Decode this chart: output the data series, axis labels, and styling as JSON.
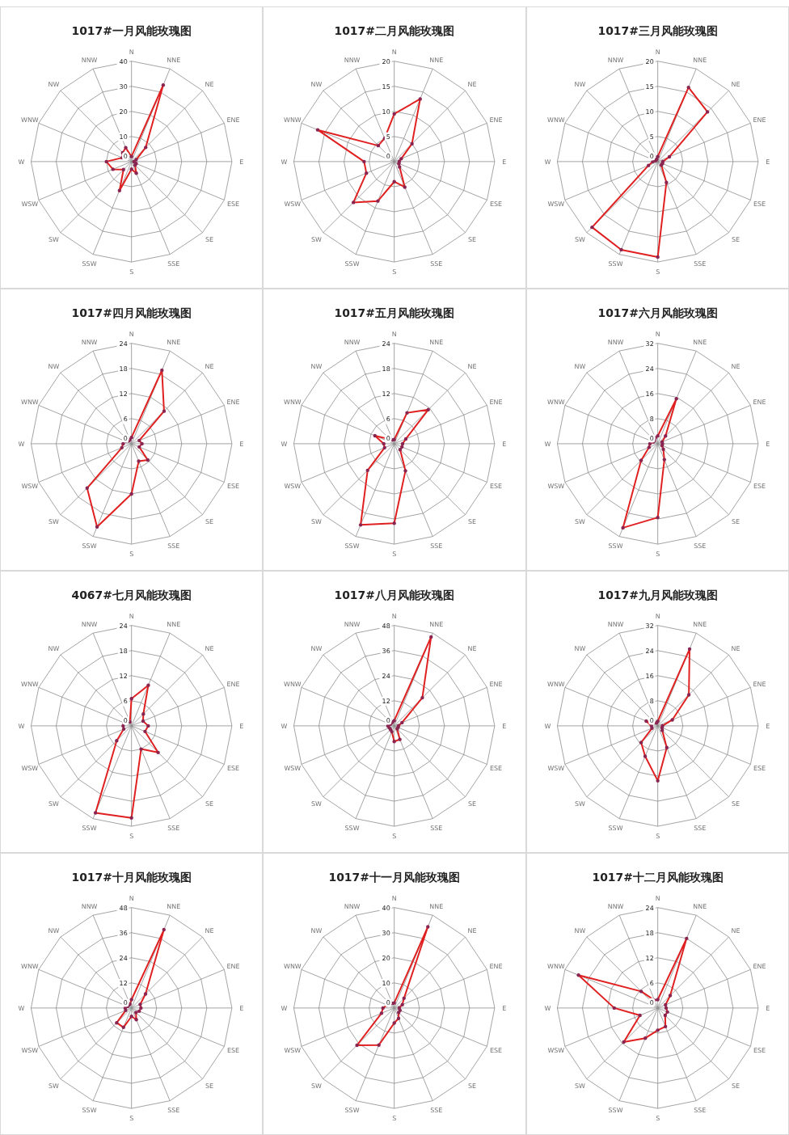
{
  "chart_data": [
    {
      "type": "radar",
      "title": "1017#一月风能玫瑰图",
      "categories": [
        "N",
        "NNE",
        "NE",
        "ENE",
        "E",
        "ESE",
        "SE",
        "SSE",
        "S",
        "SSW",
        "SW",
        "WSW",
        "W",
        "WNW",
        "NW",
        "NNW"
      ],
      "ylim": [
        0,
        40
      ],
      "yticks": [
        0,
        10,
        20,
        30,
        40
      ],
      "grid": true,
      "marker": "circle",
      "series": [
        {
          "color": "#e02020",
          "values": [
            2,
            33,
            8,
            2,
            1,
            2,
            2,
            5,
            3,
            12.5,
            4.5,
            8,
            10,
            4,
            5,
            6
          ]
        }
      ]
    },
    {
      "type": "radar",
      "title": "1017#二月风能玫瑰图",
      "categories": [
        "N",
        "NNE",
        "NE",
        "ENE",
        "E",
        "ESE",
        "SE",
        "SSE",
        "S",
        "SSW",
        "SW",
        "WSW",
        "W",
        "WNW",
        "NW",
        "NNW"
      ],
      "ylim": [
        0,
        20
      ],
      "yticks": [
        0,
        5,
        10,
        15,
        20
      ],
      "grid": true,
      "marker": "circle",
      "series": [
        {
          "color": "#e02020",
          "values": [
            9.5,
            13.5,
            5,
            1.5,
            1,
            1,
            1.5,
            5.5,
            4,
            8.5,
            11.5,
            6,
            6,
            16.5,
            4.5,
            5
          ]
        }
      ]
    },
    {
      "type": "radar",
      "title": "1017#三月风能玫瑰图",
      "categories": [
        "N",
        "NNE",
        "NE",
        "ENE",
        "E",
        "ESE",
        "SE",
        "SSE",
        "S",
        "SSW",
        "SW",
        "WSW",
        "W",
        "WNW",
        "NW",
        "NNW"
      ],
      "ylim": [
        0,
        20
      ],
      "yticks": [
        0,
        5,
        10,
        15,
        20
      ],
      "grid": true,
      "marker": "circle",
      "series": [
        {
          "color": "#e02020",
          "values": [
            1,
            16,
            14,
            2.5,
            1,
            1,
            1,
            4.5,
            19,
            19,
            18.5,
            2,
            1,
            0.5,
            0.5,
            0.5
          ]
        }
      ]
    },
    {
      "type": "radar",
      "title": "1017#四月风能玫瑰图",
      "categories": [
        "N",
        "NNE",
        "NE",
        "ENE",
        "E",
        "ESE",
        "SE",
        "SSE",
        "S",
        "SSW",
        "SW",
        "WSW",
        "W",
        "WNW",
        "NW",
        "NNW"
      ],
      "ylim": [
        0,
        24
      ],
      "yticks": [
        0,
        6,
        12,
        18,
        24
      ],
      "grid": true,
      "marker": "circle",
      "series": [
        {
          "color": "#e02020",
          "values": [
            1.5,
            19,
            11,
            2,
            2.5,
            2,
            5.5,
            4.5,
            12,
            21.5,
            15,
            2.5,
            2,
            1.5,
            1,
            1
          ]
        }
      ]
    },
    {
      "type": "radar",
      "title": "1017#五月风能玫瑰图",
      "categories": [
        "N",
        "NNE",
        "NE",
        "ENE",
        "E",
        "ESE",
        "SE",
        "SSE",
        "S",
        "SSW",
        "SW",
        "WSW",
        "W",
        "WNW",
        "NW",
        "NNW"
      ],
      "ylim": [
        0,
        24
      ],
      "yticks": [
        0,
        6,
        12,
        18,
        24
      ],
      "grid": true,
      "marker": "circle",
      "series": [
        {
          "color": "#e02020",
          "values": [
            1,
            8,
            11.5,
            3,
            2,
            2,
            2,
            7,
            19,
            21,
            9,
            2.5,
            2.5,
            5,
            1.5,
            1
          ]
        }
      ]
    },
    {
      "type": "radar",
      "title": "1017#六月风能玫瑰图",
      "categories": [
        "N",
        "NNE",
        "NE",
        "ENE",
        "E",
        "ESE",
        "SE",
        "SSE",
        "S",
        "SSW",
        "SW",
        "WSW",
        "W",
        "WNW",
        "NW",
        "NNW"
      ],
      "ylim": [
        0,
        32
      ],
      "yticks": [
        0,
        8,
        16,
        24,
        32
      ],
      "grid": true,
      "marker": "circle",
      "series": [
        {
          "color": "#e02020",
          "values": [
            2.5,
            15.5,
            3.5,
            1.5,
            1.5,
            1.5,
            2.5,
            5.5,
            23.5,
            29,
            7.5,
            3,
            2.5,
            1.5,
            1.5,
            2
          ]
        }
      ]
    },
    {
      "type": "radar",
      "title": "4067#七月风能玫瑰图",
      "categories": [
        "N",
        "NNE",
        "NE",
        "ENE",
        "E",
        "ESE",
        "SE",
        "SSE",
        "S",
        "SSW",
        "SW",
        "WSW",
        "W",
        "WNW",
        "NW",
        "NNW"
      ],
      "ylim": [
        0,
        24
      ],
      "yticks": [
        0,
        6,
        12,
        18,
        24
      ],
      "grid": true,
      "marker": "circle",
      "series": [
        {
          "color": "#e02020",
          "values": [
            6.5,
            10.5,
            4,
            3,
            4,
            3.5,
            9,
            6,
            22,
            22.5,
            5,
            2,
            2,
            2,
            1.5,
            1
          ]
        }
      ]
    },
    {
      "type": "radar",
      "title": "1017#八月风能玫瑰图",
      "categories": [
        "N",
        "NNE",
        "NE",
        "ENE",
        "E",
        "ESE",
        "SE",
        "SSE",
        "S",
        "SSW",
        "SW",
        "WSW",
        "W",
        "WNW",
        "NW",
        "NNW"
      ],
      "ylim": [
        0,
        48
      ],
      "yticks": [
        0,
        12,
        24,
        36,
        48
      ],
      "grid": true,
      "marker": "circle",
      "series": [
        {
          "color": "#e02020",
          "values": [
            2.5,
            46,
            19,
            4,
            2,
            2,
            2,
            7,
            7.5,
            3,
            2.5,
            2.5,
            3,
            2,
            2,
            2
          ]
        }
      ]
    },
    {
      "type": "radar",
      "title": "1017#九月风能玫瑰图",
      "categories": [
        "N",
        "NNE",
        "NE",
        "ENE",
        "E",
        "ESE",
        "SE",
        "SSE",
        "S",
        "SSW",
        "SW",
        "WSW",
        "W",
        "WNW",
        "NW",
        "NNW"
      ],
      "ylim": [
        0,
        32
      ],
      "yticks": [
        0,
        8,
        16,
        24,
        32
      ],
      "grid": true,
      "marker": "circle",
      "series": [
        {
          "color": "#e02020",
          "values": [
            1.5,
            26.5,
            14,
            5,
            1.5,
            1.5,
            2,
            7.5,
            17.5,
            10.5,
            7.5,
            2,
            2,
            4,
            1.5,
            1
          ]
        }
      ]
    },
    {
      "type": "radar",
      "title": "1017#十月风能玫瑰图",
      "categories": [
        "N",
        "NNE",
        "NE",
        "ENE",
        "E",
        "ESE",
        "SE",
        "SSE",
        "S",
        "SSW",
        "SW",
        "WSW",
        "W",
        "WNW",
        "NW",
        "NNW"
      ],
      "ylim": [
        0,
        48
      ],
      "yticks": [
        0,
        12,
        24,
        36,
        48
      ],
      "grid": true,
      "marker": "circle",
      "series": [
        {
          "color": "#e02020",
          "values": [
            4,
            40.5,
            9.5,
            4.5,
            4.5,
            4,
            3,
            6,
            4,
            10,
            10,
            3,
            3,
            2,
            2,
            2
          ]
        }
      ]
    },
    {
      "type": "radar",
      "title": "1017#十一月风能玫瑰图",
      "categories": [
        "N",
        "NNE",
        "NE",
        "ENE",
        "E",
        "ESE",
        "SE",
        "SSE",
        "S",
        "SSW",
        "SW",
        "WSW",
        "W",
        "WNW",
        "NW",
        "NNW"
      ],
      "ylim": [
        0,
        40
      ],
      "yticks": [
        0,
        10,
        20,
        30,
        40
      ],
      "grid": true,
      "marker": "circle",
      "series": [
        {
          "color": "#e02020",
          "values": [
            2,
            35,
            5.5,
            3.5,
            2,
            2.5,
            2.5,
            4.5,
            6,
            16,
            21,
            5.5,
            4.5,
            3,
            2.5,
            2
          ]
        }
      ]
    },
    {
      "type": "radar",
      "title": "1017#十二月风能玫瑰图",
      "categories": [
        "N",
        "NNE",
        "NE",
        "ENE",
        "E",
        "ESE",
        "SE",
        "SSE",
        "S",
        "SSW",
        "SW",
        "WSW",
        "W",
        "WNW",
        "NW",
        "NNW"
      ],
      "ylim": [
        0,
        24
      ],
      "yticks": [
        0,
        6,
        12,
        18,
        24
      ],
      "grid": true,
      "marker": "circle",
      "series": [
        {
          "color": "#e02020",
          "values": [
            2,
            18,
            4.2,
            2,
            2,
            2.5,
            2.5,
            4.8,
            5.3,
            7.8,
            11.5,
            4.6,
            10.4,
            20.5,
            5.6,
            2
          ]
        }
      ]
    }
  ]
}
